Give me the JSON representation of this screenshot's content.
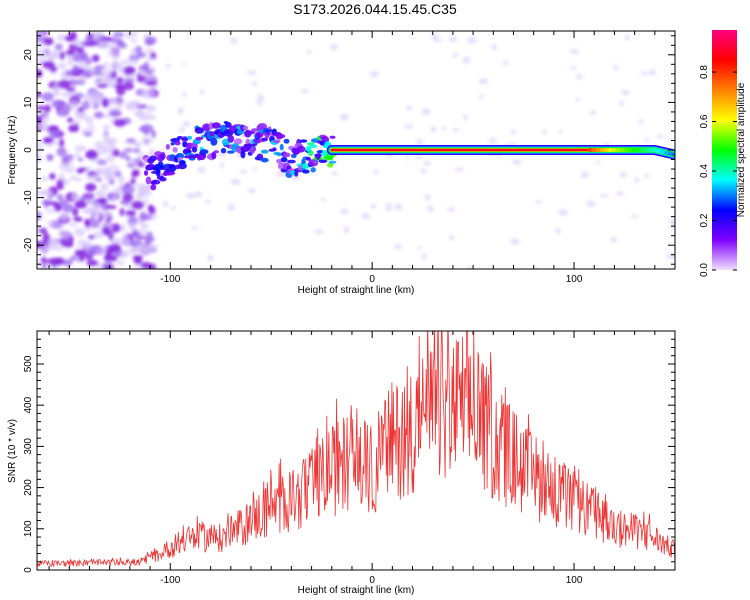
{
  "title": "S173.2026.044.15.45.C35",
  "chart_data": [
    {
      "type": "heatmap",
      "title": "",
      "xlabel": "Height of straight line (km)",
      "ylabel": "Frequency (Hz)",
      "xlim": [
        -166,
        150
      ],
      "ylim": [
        -25,
        25
      ],
      "xticks": [
        -100,
        0,
        100
      ],
      "xtick_labels": [
        "-100",
        "0",
        "100"
      ],
      "yticks": [
        -20,
        -10,
        0,
        10,
        20
      ],
      "ytick_labels": [
        "-20",
        "-10",
        "0",
        "10",
        "20"
      ],
      "colorbar": {
        "label": "Normalized spectral amplitude",
        "range": [
          0,
          0.97
        ],
        "ticks": [
          0.0,
          0.2,
          0.4,
          0.6,
          0.8
        ],
        "tick_labels": [
          "0.0",
          "0.2",
          "0.4",
          "0.6",
          "0.8"
        ],
        "colormap": [
          "#f0e0ff",
          "#8000ff",
          "#0000ff",
          "#00ffff",
          "#00ff00",
          "#ffff00",
          "#ff8000",
          "#ff0000",
          "#ff0080"
        ]
      },
      "ridge": {
        "x": [
          -110,
          -100,
          -90,
          -80,
          -70,
          -60,
          -50,
          -40,
          -30,
          -20,
          -10,
          0,
          10,
          20,
          60,
          100,
          120,
          140,
          150
        ],
        "y": [
          -5,
          -2,
          1,
          2,
          3,
          2,
          1,
          -2,
          -1,
          0,
          0,
          0,
          0,
          0,
          0,
          0,
          0,
          0,
          -1
        ],
        "amplitude": [
          0.2,
          0.25,
          0.3,
          0.3,
          0.3,
          0.3,
          0.3,
          0.3,
          0.4,
          0.5,
          0.7,
          0.8,
          0.9,
          0.95,
          0.95,
          0.95,
          0.6,
          0.4,
          0.3
        ]
      }
    },
    {
      "type": "line",
      "title": "",
      "xlabel": "Height of straight line (km)",
      "ylabel": "SNR (10 * v/v)",
      "xlim": [
        -166,
        150
      ],
      "ylim": [
        0,
        580
      ],
      "xticks": [
        -100,
        0,
        100
      ],
      "xtick_labels": [
        "-100",
        "0",
        "100"
      ],
      "yticks": [
        0,
        100,
        200,
        300,
        400,
        500
      ],
      "ytick_labels": [
        "0",
        "100",
        "200",
        "300",
        "400",
        "500"
      ],
      "line_color": "#ee3333",
      "series": [
        {
          "name": "SNR",
          "x": [
            -166,
            -140,
            -115,
            -105,
            -95,
            -85,
            -75,
            -65,
            -55,
            -45,
            -35,
            -25,
            -15,
            -10,
            -5,
            0,
            5,
            10,
            15,
            20,
            25,
            30,
            35,
            40,
            45,
            50,
            55,
            60,
            65,
            70,
            80,
            90,
            100,
            110,
            120,
            130,
            140,
            150
          ],
          "y": [
            18,
            20,
            22,
            45,
            80,
            95,
            90,
            120,
            160,
            190,
            210,
            260,
            300,
            330,
            300,
            280,
            340,
            360,
            380,
            410,
            430,
            440,
            450,
            460,
            470,
            440,
            410,
            370,
            340,
            320,
            260,
            230,
            190,
            160,
            120,
            110,
            90,
            55
          ]
        }
      ]
    }
  ]
}
